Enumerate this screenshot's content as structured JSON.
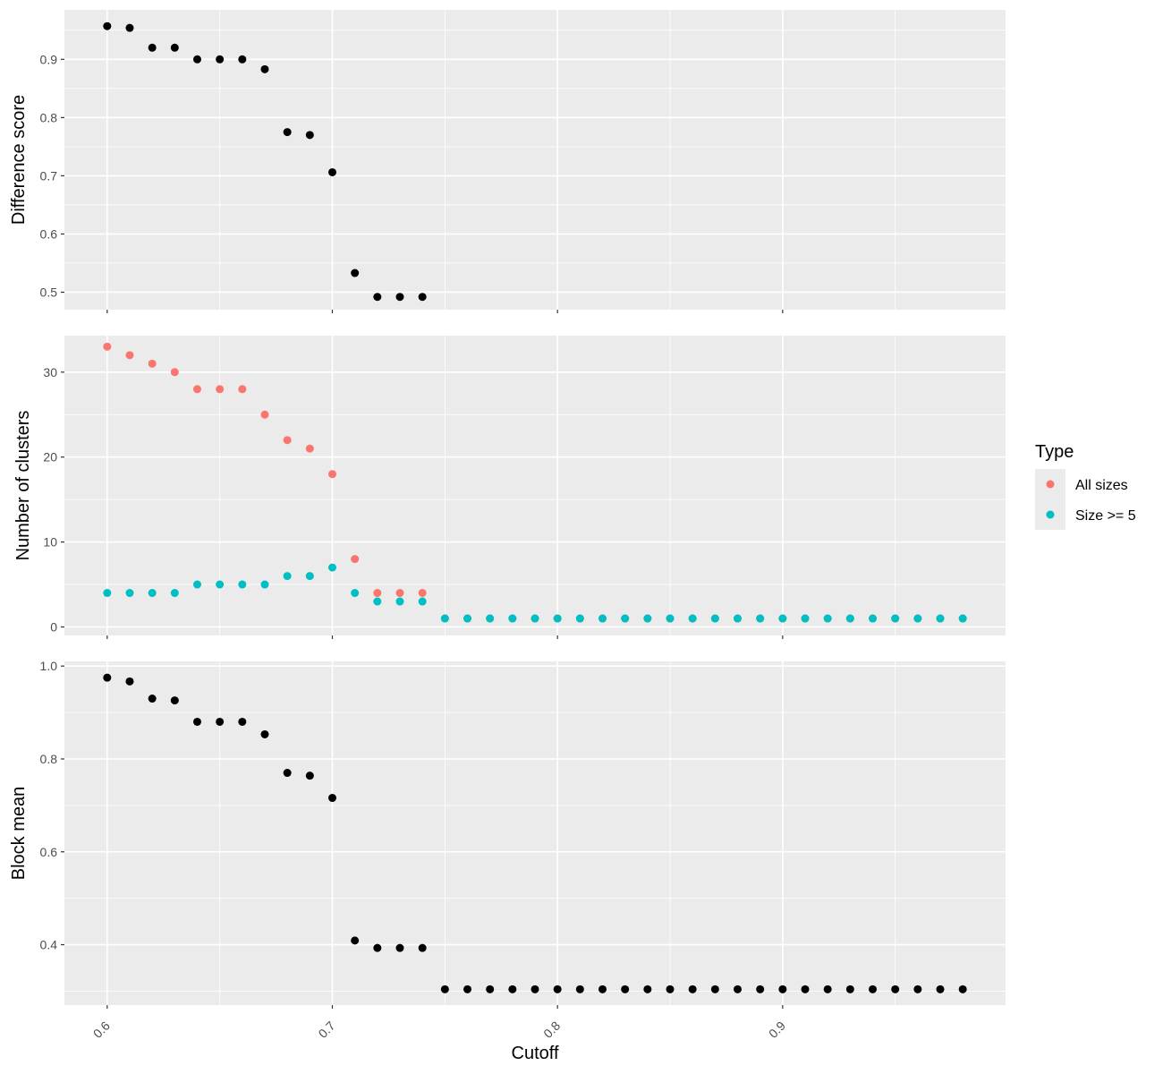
{
  "chart_data": {
    "type": "scatter",
    "xlabel": "Cutoff",
    "x_ticks": [
      0.6,
      0.7,
      0.8,
      0.9
    ],
    "x_tick_labels": [
      "0.6",
      "0.7",
      "0.8",
      "0.9"
    ],
    "xlim": [
      0.581,
      0.999
    ],
    "grid": true,
    "legend": {
      "title": "Type",
      "placement": "right",
      "entries": [
        {
          "label": "All sizes",
          "color": "#F8766D"
        },
        {
          "label": "Size >= 5",
          "color": "#00BFC4"
        }
      ]
    },
    "panels": [
      {
        "ylabel": "Difference score",
        "ylim": [
          0.47,
          0.985
        ],
        "y_ticks": [
          0.5,
          0.6,
          0.7,
          0.8,
          0.9
        ],
        "y_tick_labels": [
          "0.5",
          "0.6",
          "0.7",
          "0.8",
          "0.9"
        ],
        "series": [
          {
            "color": "#000000",
            "x": [
              0.6,
              0.61,
              0.62,
              0.63,
              0.64,
              0.65,
              0.66,
              0.67,
              0.68,
              0.69,
              0.7,
              0.71,
              0.72,
              0.73,
              0.74
            ],
            "y": [
              0.957,
              0.954,
              0.92,
              0.92,
              0.9,
              0.9,
              0.9,
              0.883,
              0.775,
              0.77,
              0.706,
              0.533,
              0.492,
              0.492,
              0.492
            ]
          }
        ]
      },
      {
        "ylabel": "Number of clusters",
        "ylim": [
          -1,
          34.3
        ],
        "y_ticks": [
          0,
          10,
          20,
          30
        ],
        "y_tick_labels": [
          "0",
          "10",
          "20",
          "30"
        ],
        "series": [
          {
            "name": "All sizes",
            "color": "#F8766D",
            "x": [
              0.6,
              0.61,
              0.62,
              0.63,
              0.64,
              0.65,
              0.66,
              0.67,
              0.68,
              0.69,
              0.7,
              0.71,
              0.72,
              0.73,
              0.74,
              0.75,
              0.76,
              0.77,
              0.78,
              0.79,
              0.8,
              0.81,
              0.82,
              0.83,
              0.84,
              0.85,
              0.86,
              0.87,
              0.88,
              0.89,
              0.9,
              0.91,
              0.92,
              0.93,
              0.94,
              0.95,
              0.96,
              0.97,
              0.98
            ],
            "y": [
              33,
              32,
              31,
              30,
              28,
              28,
              28,
              25,
              22,
              21,
              18,
              8,
              4,
              4,
              4,
              1,
              1,
              1,
              1,
              1,
              1,
              1,
              1,
              1,
              1,
              1,
              1,
              1,
              1,
              1,
              1,
              1,
              1,
              1,
              1,
              1,
              1,
              1,
              1
            ]
          },
          {
            "name": "Size >= 5",
            "color": "#00BFC4",
            "x": [
              0.6,
              0.61,
              0.62,
              0.63,
              0.64,
              0.65,
              0.66,
              0.67,
              0.68,
              0.69,
              0.7,
              0.71,
              0.72,
              0.73,
              0.74,
              0.75,
              0.76,
              0.77,
              0.78,
              0.79,
              0.8,
              0.81,
              0.82,
              0.83,
              0.84,
              0.85,
              0.86,
              0.87,
              0.88,
              0.89,
              0.9,
              0.91,
              0.92,
              0.93,
              0.94,
              0.95,
              0.96,
              0.97,
              0.98
            ],
            "y": [
              4,
              4,
              4,
              4,
              5,
              5,
              5,
              5,
              6,
              6,
              7,
              4,
              3,
              3,
              3,
              1,
              1,
              1,
              1,
              1,
              1,
              1,
              1,
              1,
              1,
              1,
              1,
              1,
              1,
              1,
              1,
              1,
              1,
              1,
              1,
              1,
              1,
              1,
              1
            ]
          }
        ]
      },
      {
        "ylabel": "Block mean",
        "ylim": [
          0.27,
          1.01
        ],
        "y_ticks": [
          0.4,
          0.6,
          0.8,
          1.0
        ],
        "y_tick_labels": [
          "0.4",
          "0.6",
          "0.8",
          "1.0"
        ],
        "series": [
          {
            "color": "#000000",
            "x": [
              0.6,
              0.61,
              0.62,
              0.63,
              0.64,
              0.65,
              0.66,
              0.67,
              0.68,
              0.69,
              0.7,
              0.71,
              0.72,
              0.73,
              0.74,
              0.75,
              0.76,
              0.77,
              0.78,
              0.79,
              0.8,
              0.81,
              0.82,
              0.83,
              0.84,
              0.85,
              0.86,
              0.87,
              0.88,
              0.89,
              0.9,
              0.91,
              0.92,
              0.93,
              0.94,
              0.95,
              0.96,
              0.97,
              0.98
            ],
            "y": [
              0.975,
              0.967,
              0.93,
              0.926,
              0.88,
              0.88,
              0.88,
              0.853,
              0.77,
              0.764,
              0.716,
              0.409,
              0.393,
              0.393,
              0.393,
              0.304,
              0.304,
              0.304,
              0.304,
              0.304,
              0.304,
              0.304,
              0.304,
              0.304,
              0.304,
              0.304,
              0.304,
              0.304,
              0.304,
              0.304,
              0.304,
              0.304,
              0.304,
              0.304,
              0.304,
              0.304,
              0.304,
              0.304,
              0.304
            ]
          }
        ]
      }
    ]
  }
}
